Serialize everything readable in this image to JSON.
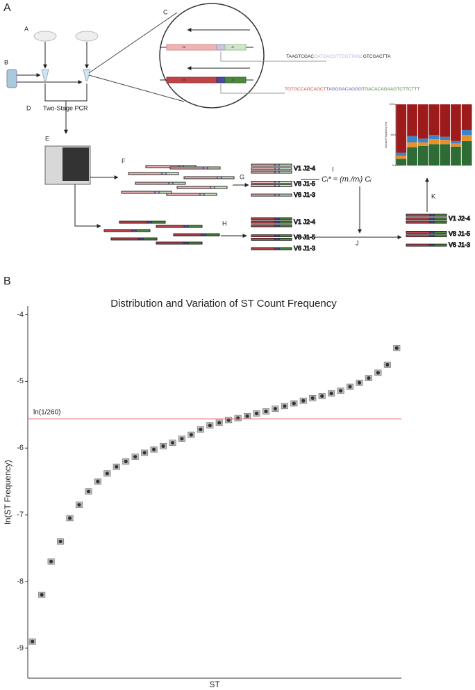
{
  "diagram": {
    "panel_label": "A",
    "steps": [
      "A",
      "B",
      "C",
      "D",
      "E",
      "F",
      "G",
      "H",
      "I",
      "J",
      "K"
    ],
    "pcr_label": "Two-Stage PCR",
    "segments_top": [
      "V8",
      "J2"
    ],
    "segments_bottom": [
      "V8",
      "J1"
    ],
    "sequence_top": [
      "TAAGTCGAC",
      "GATGACGTTCCTTAGC",
      "GTCGACTTA"
    ],
    "sequence_bottom": [
      "TGTGCCAGCAGCT",
      "TAGGGACAGGGT",
      "GACACAGAAGTCTTCTTT"
    ],
    "formula": "Cᵢ* = (m./mᵢ) Cᵢ",
    "clones": [
      "V1 J2-4",
      "V8 J1-5",
      "V6 J1-3"
    ]
  },
  "chart_data": [
    {
      "type": "stacked_bar",
      "ylabel": "Clonal Frequency (%)",
      "categories": [
        null,
        null,
        null,
        null,
        null,
        null,
        null
      ],
      "series": [
        {
          "color": "#2f6b34",
          "values": [
            11,
            30,
            32,
            35,
            35,
            31,
            40
          ]
        },
        {
          "color": "#e8912b",
          "values": [
            5,
            8,
            6,
            8,
            7,
            5,
            10
          ]
        },
        {
          "color": "#3a86c8",
          "values": [
            5,
            10,
            6,
            7,
            5,
            4,
            8
          ]
        },
        {
          "color": "#9e1b1b",
          "values": [
            79,
            52,
            56,
            50,
            53,
            60,
            42
          ]
        }
      ],
      "ylim": [
        0,
        100
      ],
      "yticks": [
        0,
        50,
        100
      ]
    },
    {
      "type": "point",
      "panel_label": "B",
      "title": "Distribution and Variation of ST Count Frequency",
      "xlabel": "ST",
      "ylabel": "ln(ST Frequency)",
      "categories": [
        null,
        null,
        null,
        null,
        null,
        null,
        null,
        null,
        null,
        null,
        null,
        null,
        null,
        null,
        null,
        null,
        null,
        null,
        null,
        null,
        null,
        null,
        null,
        null,
        null,
        null,
        null,
        null,
        null,
        null,
        null,
        null,
        null,
        null,
        null,
        null,
        null,
        null,
        null,
        null
      ],
      "values": [
        -8.9,
        -8.2,
        -7.7,
        -7.4,
        -7.05,
        -6.85,
        -6.65,
        -6.5,
        -6.38,
        -6.28,
        -6.2,
        -6.13,
        -6.07,
        -6.02,
        -5.97,
        -5.92,
        -5.86,
        -5.8,
        -5.72,
        -5.66,
        -5.62,
        -5.58,
        -5.55,
        -5.52,
        -5.48,
        -5.45,
        -5.41,
        -5.37,
        -5.33,
        -5.29,
        -5.25,
        -5.22,
        -5.18,
        -5.14,
        -5.08,
        -5.02,
        -4.95,
        -4.87,
        -4.75,
        -4.5
      ],
      "color": "#333333",
      "reference_line": {
        "value": -5.5607,
        "label": "ln(1/260)",
        "color": "#e06060"
      },
      "ylim": [
        -9.45,
        -3.87
      ],
      "yticks": [
        -9,
        -8,
        -7,
        -6,
        -5,
        -4
      ]
    }
  ]
}
